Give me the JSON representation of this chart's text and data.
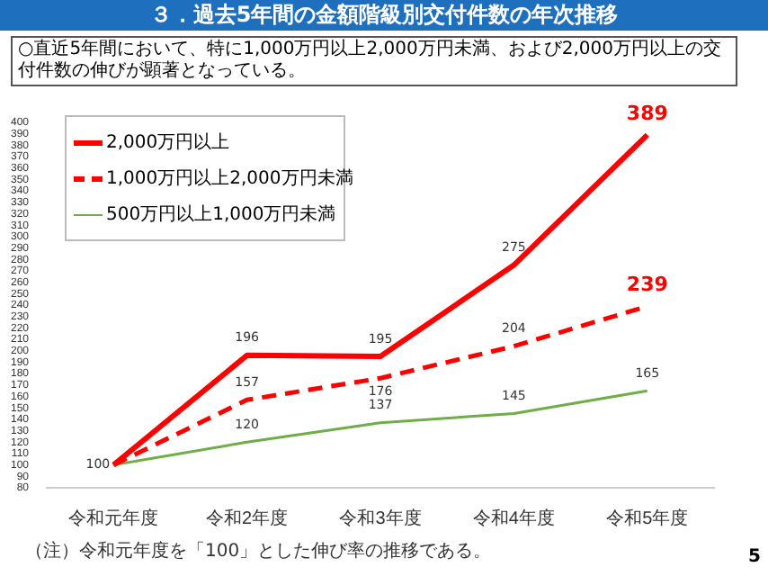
{
  "chart_data": {
    "type": "line",
    "title": "３．過去5年間の金額階級別交付件数の年次推移",
    "subtitle": "○直近5年間において、特に1,000万円以上2,000万円未満、および2,000万円以上の交付件数の伸びが顕著となっている。",
    "categories": [
      "令和元年度",
      "令和2年度",
      "令和3年度",
      "令和4年度",
      "令和5年度"
    ],
    "series": [
      {
        "name": "2,000万円以上",
        "color": "#ff0000",
        "line_style": "solid",
        "values": [
          100,
          196,
          195,
          275,
          389
        ],
        "value_labels": [
          "100",
          "196",
          "195",
          "275",
          "389"
        ]
      },
      {
        "name": "1,000万円以上2,000万円未満",
        "color": "#ff0000",
        "line_style": "dashed",
        "values": [
          100,
          157,
          176,
          204,
          239
        ],
        "value_labels": [
          null,
          "157",
          "176",
          "204",
          "239"
        ]
      },
      {
        "name": "500万円以上1,000万円未満",
        "color": "#70ad47",
        "line_style": "solid",
        "values": [
          100,
          120,
          137,
          145,
          165
        ],
        "value_labels": [
          null,
          "120",
          "137",
          "145",
          "165"
        ]
      }
    ],
    "ylim": [
      80,
      400
    ],
    "yticks": [
      80,
      90,
      100,
      110,
      120,
      130,
      140,
      150,
      160,
      170,
      180,
      190,
      200,
      210,
      220,
      230,
      240,
      250,
      260,
      270,
      280,
      290,
      300,
      310,
      320,
      330,
      340,
      350,
      360,
      370,
      380,
      390,
      400
    ],
    "grid": false,
    "legend": "top left",
    "marker": "none",
    "annotations": [
      "（注）令和元年度を「100」とした伸び率の推移である。",
      "5"
    ]
  }
}
